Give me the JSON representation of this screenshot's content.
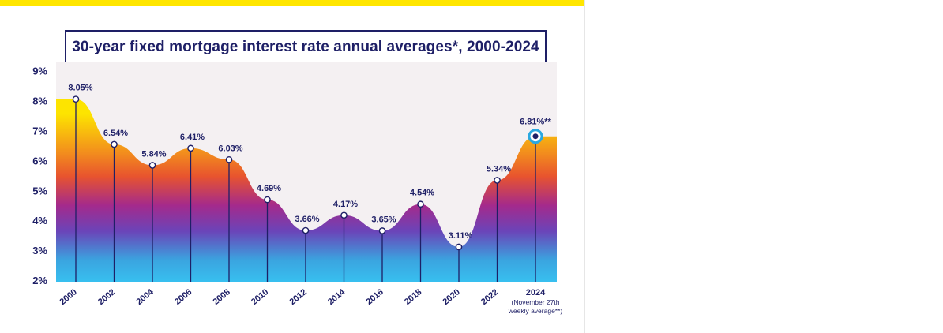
{
  "colors": {
    "accent_yellow": "#ffe600",
    "navy": "#1e1f66",
    "plot_background": "#f4f0f2",
    "gradient": [
      "#fde400",
      "#f28a1e",
      "#e8542e",
      "#a42a8c",
      "#6b44b8",
      "#3aa5e0",
      "#38c0f0"
    ],
    "highlight": "#2aa8e0"
  },
  "chart_data": {
    "type": "area",
    "title": "30-year fixed mortgage interest rate annual averages*, 2000-2024",
    "xlabel": "",
    "ylabel": "",
    "ylim": [
      2,
      9
    ],
    "yticks": [
      "9%",
      "8%",
      "7%",
      "6%",
      "5%",
      "4%",
      "3%",
      "2%"
    ],
    "ytick_values": [
      9,
      8,
      7,
      6,
      5,
      4,
      3,
      2
    ],
    "points": [
      {
        "year": 2000,
        "value": 8.05,
        "label": "8.05%",
        "tick": "2000"
      },
      {
        "year": 2002,
        "value": 6.54,
        "label": "6.54%",
        "tick": "2002"
      },
      {
        "year": 2004,
        "value": 5.84,
        "label": "5.84%",
        "tick": "2004"
      },
      {
        "year": 2006,
        "value": 6.41,
        "label": "6.41%",
        "tick": "2006"
      },
      {
        "year": 2008,
        "value": 6.03,
        "label": "6.03%",
        "tick": "2008"
      },
      {
        "year": 2010,
        "value": 4.69,
        "label": "4.69%",
        "tick": "2010"
      },
      {
        "year": 2012,
        "value": 3.66,
        "label": "3.66%",
        "tick": "2012"
      },
      {
        "year": 2014,
        "value": 4.17,
        "label": "4.17%",
        "tick": "2014"
      },
      {
        "year": 2016,
        "value": 3.65,
        "label": "3.65%",
        "tick": "2016"
      },
      {
        "year": 2018,
        "value": 4.54,
        "label": "4.54%",
        "tick": "2018"
      },
      {
        "year": 2020,
        "value": 3.11,
        "label": "3.11%",
        "tick": "2020"
      },
      {
        "year": 2022,
        "value": 5.34,
        "label": "5.34%",
        "tick": "2022"
      },
      {
        "year": 2024,
        "value": 6.81,
        "label": "6.81%**",
        "tick": "2024",
        "highlight": true
      }
    ],
    "last_tick_note": [
      "(November 27th",
      "weekly average**)"
    ]
  }
}
